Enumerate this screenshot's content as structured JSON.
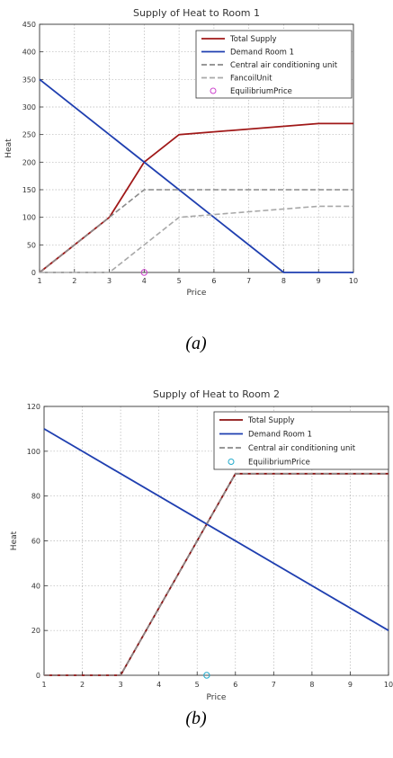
{
  "chart_data": [
    {
      "type": "line",
      "title": "Supply of Heat to Room 1",
      "xlabel": "Price",
      "ylabel": "Heat",
      "xlim": [
        1,
        10
      ],
      "ylim": [
        0,
        450
      ],
      "x_ticks": [
        1,
        2,
        3,
        4,
        5,
        6,
        7,
        8,
        9,
        10
      ],
      "y_ticks": [
        0,
        50,
        100,
        150,
        200,
        250,
        300,
        350,
        400,
        450
      ],
      "grid": true,
      "legend_position": "top-right",
      "series": [
        {
          "name": "Total Supply",
          "color": "#a01818",
          "style": "solid",
          "points": [
            [
              1,
              0
            ],
            [
              3,
              100
            ],
            [
              4,
              200
            ],
            [
              5,
              250
            ],
            [
              9,
              270
            ],
            [
              10,
              270
            ]
          ]
        },
        {
          "name": "Demand Room 1",
          "color": "#1f3fb0",
          "style": "solid",
          "points": [
            [
              1,
              350
            ],
            [
              8,
              0
            ],
            [
              10,
              0
            ]
          ]
        },
        {
          "name": "Central air conditioning unit",
          "color": "#8a8a8a",
          "style": "dashed",
          "points": [
            [
              1,
              0
            ],
            [
              3,
              100
            ],
            [
              4,
              150
            ],
            [
              10,
              150
            ]
          ]
        },
        {
          "name": "FancoilUnit",
          "color": "#a8a8a8",
          "style": "dashed",
          "points": [
            [
              1,
              0
            ],
            [
              3,
              0
            ],
            [
              5,
              100
            ],
            [
              7,
              110
            ],
            [
              9,
              120
            ],
            [
              10,
              120
            ]
          ]
        }
      ],
      "markers": [
        {
          "name": "EquilibriumPrice",
          "color": "#cc44cc",
          "x": 4,
          "y": 0
        }
      ],
      "caption": "(a)"
    },
    {
      "type": "line",
      "title": "Supply of Heat to Room 2",
      "xlabel": "Price",
      "ylabel": "Heat",
      "xlim": [
        1,
        10
      ],
      "ylim": [
        0,
        120
      ],
      "x_ticks": [
        1,
        2,
        3,
        4,
        5,
        6,
        7,
        8,
        9,
        10
      ],
      "y_ticks": [
        0,
        20,
        40,
        60,
        80,
        100,
        120
      ],
      "grid": true,
      "legend_position": "top-right",
      "series": [
        {
          "name": "Total Supply",
          "color": "#8b1010",
          "style": "solid",
          "points": [
            [
              1,
              0
            ],
            [
              3,
              0
            ],
            [
              6,
              90
            ],
            [
              10,
              90
            ]
          ]
        },
        {
          "name": "Demand Room 1",
          "color": "#1f3fb0",
          "style": "solid",
          "points": [
            [
              1,
              110
            ],
            [
              10,
              20
            ]
          ]
        },
        {
          "name": "Central air conditioning unit",
          "color": "#8a8a8a",
          "style": "dashed",
          "points": [
            [
              1,
              0
            ],
            [
              3,
              0
            ],
            [
              6,
              90
            ],
            [
              10,
              90
            ]
          ]
        }
      ],
      "markers": [
        {
          "name": "EquilibriumPrice",
          "color": "#22aacc",
          "x": 5.25,
          "y": 0
        }
      ],
      "caption": "(b)"
    }
  ]
}
